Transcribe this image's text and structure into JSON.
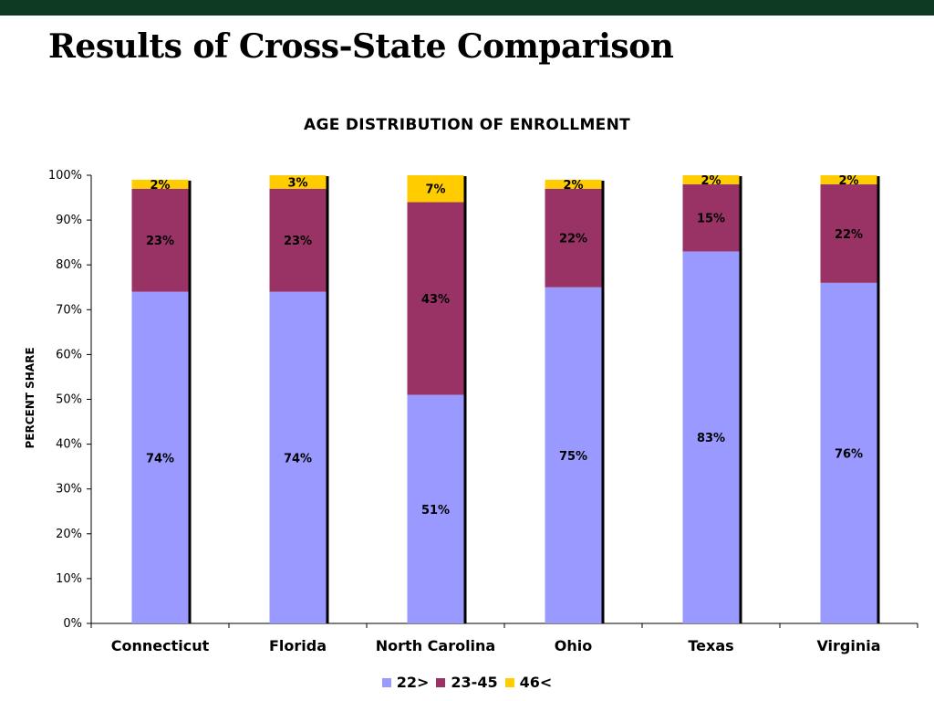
{
  "slide": {
    "title": "Results of Cross-State Comparison"
  },
  "chart_data": {
    "type": "bar",
    "stacked": true,
    "title": "AGE DISTRIBUTION OF ENROLLMENT",
    "xlabel": "",
    "ylabel": "PERCENT SHARE",
    "ylim": [
      0,
      100
    ],
    "yticks": [
      "0%",
      "10%",
      "20%",
      "30%",
      "40%",
      "50%",
      "60%",
      "70%",
      "80%",
      "90%",
      "100%"
    ],
    "grid": false,
    "legend_position": "bottom",
    "categories": [
      "Connecticut",
      "Florida",
      "North Carolina",
      "Ohio",
      "Texas",
      "Virginia"
    ],
    "series": [
      {
        "name": "22>",
        "color": "#9999ff",
        "values": [
          74,
          74,
          51,
          75,
          83,
          76
        ]
      },
      {
        "name": "23-45",
        "color": "#993366",
        "values": [
          23,
          23,
          43,
          22,
          15,
          22
        ]
      },
      {
        "name": "46<",
        "color": "#ffcc00",
        "values": [
          2,
          3,
          7,
          2,
          2,
          2
        ]
      }
    ],
    "labels": [
      [
        "74%",
        "74%",
        "51%",
        "75%",
        "83%",
        "76%"
      ],
      [
        "23%",
        "23%",
        "43%",
        "22%",
        "15%",
        "22%"
      ],
      [
        "2%",
        "3%",
        "7%",
        "2%",
        "2%",
        "2%"
      ]
    ]
  }
}
